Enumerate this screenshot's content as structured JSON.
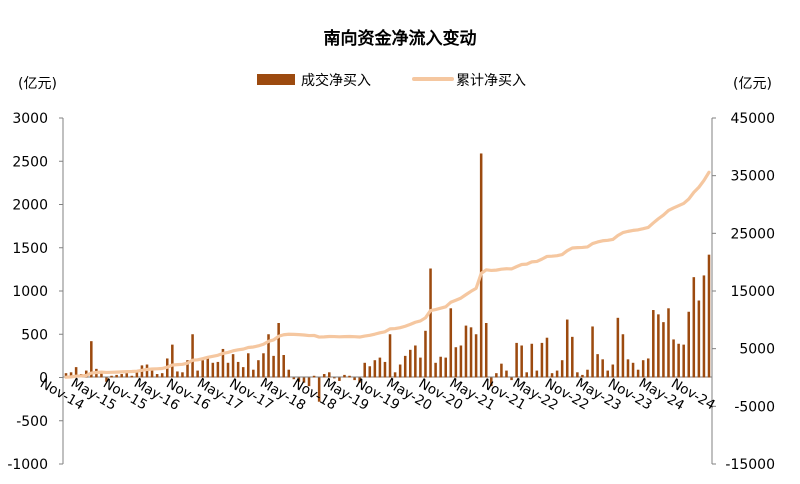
{
  "chart_data": {
    "type": "bar",
    "title": "南向资金净流入变动",
    "left_unit": "(亿元)",
    "right_unit": "(亿元)",
    "left_ylim": [
      -1000,
      3000
    ],
    "right_ylim": [
      -15000,
      45000
    ],
    "left_yticks": [
      "3000",
      "2500",
      "2000",
      "1500",
      "1000",
      "500",
      "0",
      "-500",
      "-1000"
    ],
    "right_yticks": [
      "45000",
      "35000",
      "25000",
      "15000",
      "5000",
      "-5000",
      "-15000"
    ],
    "x_tick_labels": [
      "Nov-14",
      "May-15",
      "Nov-15",
      "May-16",
      "Nov-16",
      "May-17",
      "Nov-17",
      "May-18",
      "Nov-18",
      "May-19",
      "Nov-19",
      "May-20",
      "Nov-20",
      "May-21",
      "Nov-21",
      "May-22",
      "Nov-22",
      "May-23",
      "Nov-23",
      "May-24",
      "Nov-24"
    ],
    "grid": false,
    "legend_position": "top",
    "series": [
      {
        "name": "成交净买入",
        "kind": "bar",
        "axis": "left",
        "color": "#9C4A0F",
        "values": [
          50,
          60,
          120,
          40,
          80,
          420,
          100,
          60,
          -50,
          20,
          30,
          40,
          50,
          20,
          60,
          140,
          150,
          80,
          40,
          50,
          220,
          380,
          70,
          60,
          200,
          500,
          80,
          200,
          230,
          170,
          180,
          330,
          170,
          270,
          180,
          120,
          280,
          90,
          200,
          280,
          500,
          250,
          630,
          260,
          90,
          -20,
          -50,
          -60,
          -100,
          20,
          -280,
          40,
          60,
          -10,
          -40,
          30,
          20,
          -30,
          -60,
          170,
          130,
          200,
          230,
          180,
          500,
          60,
          150,
          250,
          320,
          370,
          230,
          540,
          1260,
          170,
          240,
          230,
          800,
          350,
          370,
          600,
          580,
          500,
          2590,
          630,
          -100,
          50,
          160,
          80,
          -30,
          400,
          370,
          60,
          390,
          80,
          400,
          460,
          50,
          80,
          200,
          670,
          470,
          60,
          30,
          90,
          590,
          270,
          210,
          80,
          150,
          690,
          500,
          210,
          170,
          90,
          200,
          220,
          780,
          730,
          640,
          800,
          440,
          390,
          380,
          760,
          1160,
          890,
          1180,
          1420
        ],
        "value_note": "monthly net buy, 亿元"
      },
      {
        "name": "累计净买入",
        "kind": "line",
        "axis": "right",
        "color": "#F5C7A0",
        "values": [
          50,
          110,
          230,
          270,
          350,
          770,
          870,
          930,
          880,
          900,
          930,
          970,
          1020,
          1040,
          1100,
          1240,
          1390,
          1470,
          1510,
          1560,
          1780,
          2160,
          2230,
          2290,
          2490,
          2990,
          3070,
          3270,
          3500,
          3670,
          3850,
          4180,
          4350,
          4620,
          4800,
          4920,
          5200,
          5290,
          5490,
          5770,
          6270,
          6520,
          7150,
          7410,
          7500,
          7480,
          7430,
          7370,
          7270,
          7290,
          7010,
          7050,
          7110,
          7100,
          7060,
          7090,
          7110,
          7080,
          7020,
          7190,
          7320,
          7520,
          7750,
          7930,
          8430,
          8490,
          8640,
          8890,
          9210,
          9580,
          9810,
          10350,
          11610,
          11780,
          12020,
          12250,
          13050,
          13400,
          13770,
          14370,
          14950,
          15450,
          18040,
          18670,
          18570,
          18620,
          18780,
          18860,
          18830,
          19230,
          19600,
          19660,
          20050,
          20130,
          20530,
          20990,
          21040,
          21120,
          21320,
          21990,
          22460,
          22520,
          22550,
          22640,
          23230,
          23500,
          23710,
          23790,
          23940,
          24630,
          25130,
          25340,
          25510,
          25600,
          25800,
          26020,
          26800,
          27530,
          28170,
          28970,
          29410,
          29800,
          30180,
          30940,
          32100,
          32990,
          34170,
          35590
        ],
        "value_note": "cumulative net buy, 亿元"
      }
    ]
  }
}
